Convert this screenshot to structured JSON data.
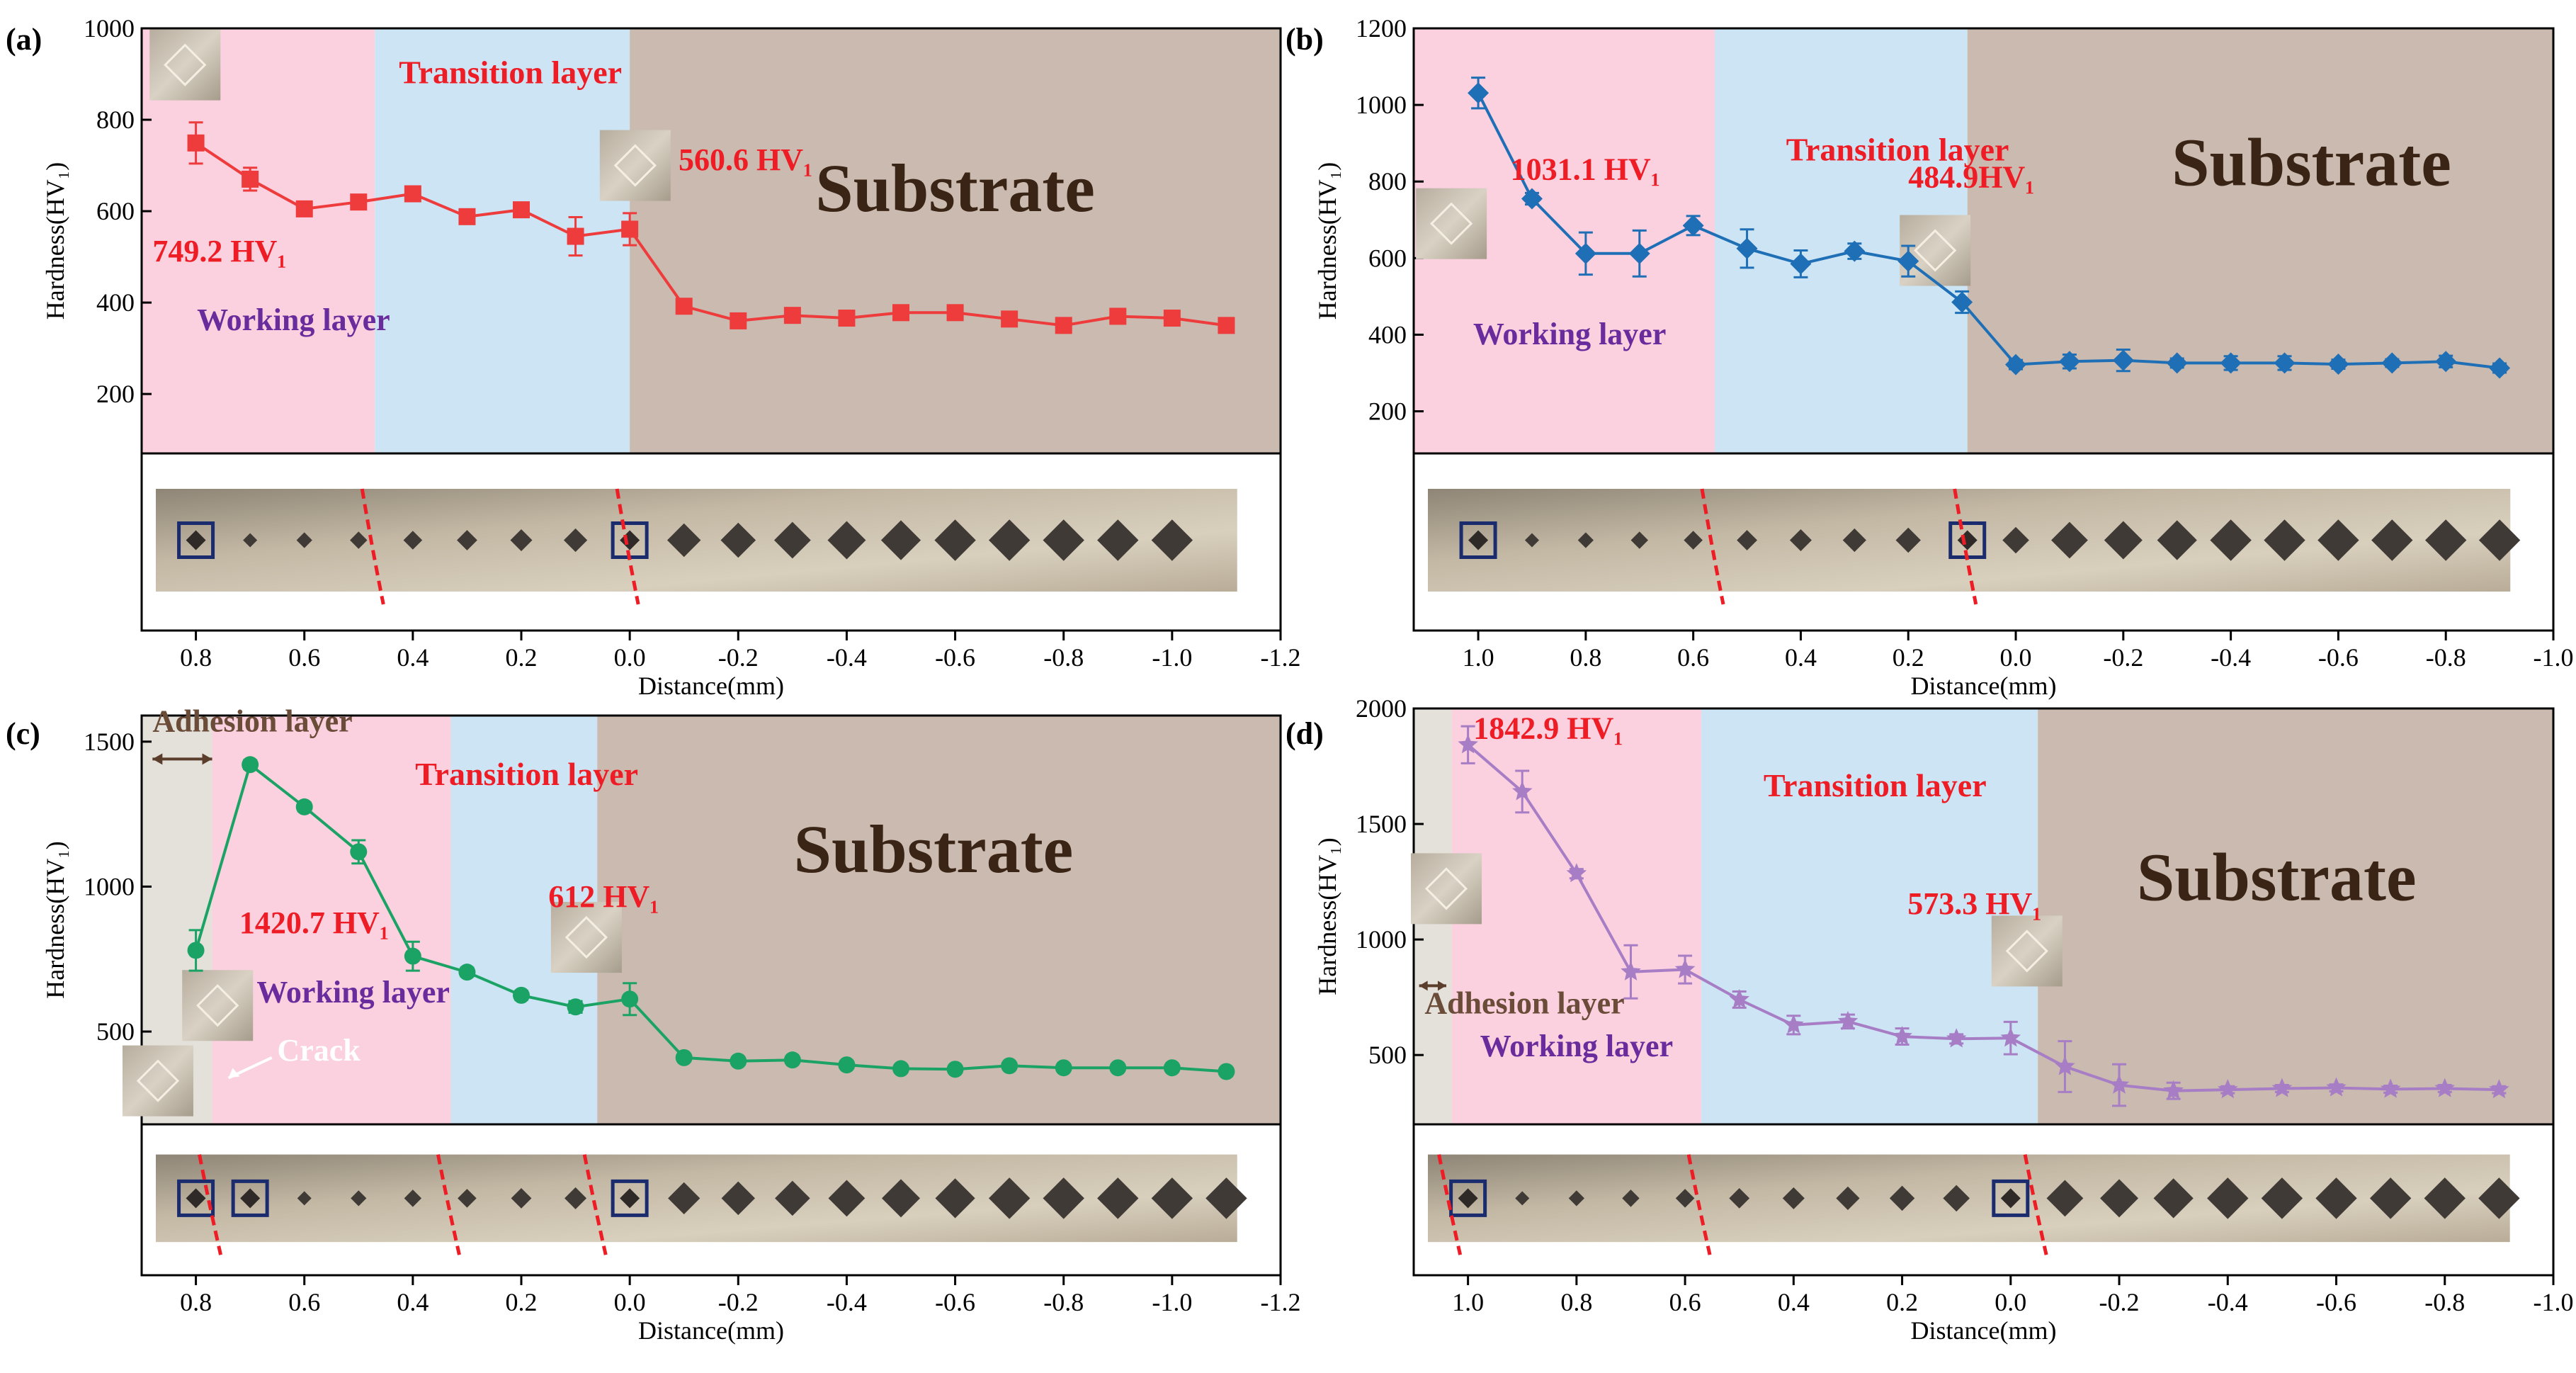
{
  "figure": {
    "x_label": "Distance(mm)",
    "y_label": "Hardness(HV₁)"
  },
  "chart_data": [
    {
      "id": "a",
      "panel_label": "(a)",
      "type": "line",
      "title": "",
      "xlabel": "Distance(mm)",
      "ylabel": "Hardness(HV₁)",
      "xlim": [
        0.9,
        -1.2
      ],
      "ylim": [
        70,
        1000
      ],
      "xticks": [
        "0.8",
        "0.6",
        "0.4",
        "0.2",
        "0.0",
        "-0.2",
        "-0.4",
        "-0.6",
        "-0.8",
        "-1.0",
        "-1.2"
      ],
      "yticks": [
        "200",
        "400",
        "600",
        "800",
        "1000"
      ],
      "color": "#ee3b3b",
      "marker": "square",
      "series": [
        {
          "name": "hardness",
          "x": [
            0.8,
            0.7,
            0.6,
            0.5,
            0.4,
            0.3,
            0.2,
            0.1,
            0.0,
            -0.1,
            -0.2,
            -0.3,
            -0.4,
            -0.5,
            -0.6,
            -0.7,
            -0.8,
            -0.9,
            -1.0,
            -1.1
          ],
          "y": [
            749.2,
            670,
            605,
            620,
            638,
            588,
            603,
            545,
            560.6,
            392,
            360,
            372,
            366,
            378,
            378,
            364,
            350,
            370,
            366,
            350
          ],
          "err": [
            45,
            25,
            10,
            10,
            12,
            12,
            12,
            42,
            35,
            12,
            10,
            10,
            10,
            10,
            10,
            10,
            8,
            10,
            10,
            8
          ]
        }
      ],
      "regions": [
        {
          "name": "Working layer",
          "from": 0.9,
          "to": 0.47,
          "color": "#fbd0df"
        },
        {
          "name": "Transition layer",
          "from": 0.47,
          "to": 0.0,
          "color": "#cce4f4"
        },
        {
          "name": "Substrate",
          "from": 0.0,
          "to": -1.2,
          "color": "#cabab0"
        }
      ],
      "annotations": [
        {
          "text": "Transition layer",
          "x": 0.22,
          "y": 880,
          "color": "#ee1c25",
          "size": 46,
          "anchor": "middle"
        },
        {
          "text": "Substrate",
          "x": -0.6,
          "y": 600,
          "color": "#3a2415",
          "size": 96,
          "anchor": "middle"
        },
        {
          "text": "Working layer",
          "x": 0.62,
          "y": 340,
          "color": "#6a2c9c",
          "size": 44,
          "anchor": "middle"
        },
        {
          "text": "749.2 HV₁",
          "x": 0.88,
          "y": 490,
          "color": "#ee1c25",
          "size": 44,
          "anchor": "start"
        },
        {
          "text": "560.6 HV₁",
          "x": -0.09,
          "y": 690,
          "color": "#ee1c25",
          "size": 44,
          "anchor": "start"
        }
      ],
      "indent_squares": [
        0.8,
        0.0
      ],
      "photo_indents": [
        0.7,
        0.6,
        0.5,
        0.4,
        0.3,
        0.2,
        0.1,
        -0.1,
        -0.2,
        -0.3,
        -0.4,
        -0.5,
        -0.6,
        -0.7,
        -0.8,
        -0.9,
        -1.0
      ]
    },
    {
      "id": "b",
      "panel_label": "(b)",
      "type": "line",
      "title": "",
      "xlabel": "Distance(mm)",
      "ylabel": "Hardness(HV₁)",
      "xlim": [
        1.12,
        -1.0
      ],
      "ylim": [
        90,
        1200
      ],
      "xticks": [
        "1.0",
        "0.8",
        "0.6",
        "0.4",
        "0.2",
        "0.0",
        "-0.2",
        "-0.4",
        "-0.6",
        "-0.8",
        "-1.0"
      ],
      "yticks": [
        "200",
        "400",
        "600",
        "800",
        "1000",
        "1200"
      ],
      "color": "#1f6fb6",
      "marker": "diamond",
      "series": [
        {
          "name": "hardness",
          "x": [
            1.0,
            0.9,
            0.8,
            0.7,
            0.6,
            0.5,
            0.4,
            0.3,
            0.2,
            0.1,
            0.0,
            -0.1,
            -0.2,
            -0.3,
            -0.4,
            -0.5,
            -0.6,
            -0.7,
            -0.8,
            -0.9
          ],
          "y": [
            1031.1,
            755,
            612,
            612,
            685,
            625,
            585,
            618,
            592,
            484.9,
            322,
            330,
            333,
            326,
            326,
            326,
            323,
            326,
            330,
            313
          ],
          "err": [
            40,
            15,
            55,
            60,
            25,
            50,
            35,
            20,
            40,
            28,
            12,
            18,
            28,
            12,
            18,
            18,
            12,
            10,
            15,
            12
          ]
        }
      ],
      "regions": [
        {
          "name": "Working layer",
          "from": 1.12,
          "to": 0.56,
          "color": "#fbd0df"
        },
        {
          "name": "Transition layer",
          "from": 0.56,
          "to": 0.09,
          "color": "#cce4f4"
        },
        {
          "name": "Substrate",
          "from": 0.09,
          "to": -1.0,
          "color": "#cabab0"
        }
      ],
      "annotations": [
        {
          "text": "Transition layer",
          "x": 0.22,
          "y": 855,
          "color": "#ee1c25",
          "size": 46,
          "anchor": "middle"
        },
        {
          "text": "Substrate",
          "x": -0.55,
          "y": 790,
          "color": "#3a2415",
          "size": 96,
          "anchor": "middle"
        },
        {
          "text": "Working layer",
          "x": 0.83,
          "y": 375,
          "color": "#6a2c9c",
          "size": 44,
          "anchor": "middle"
        },
        {
          "text": "1031.1 HV₁",
          "x": 0.94,
          "y": 805,
          "color": "#ee1c25",
          "size": 44,
          "anchor": "start"
        },
        {
          "text": "484.9HV₁",
          "x": 0.2,
          "y": 785,
          "color": "#ee1c25",
          "size": 44,
          "anchor": "start"
        }
      ],
      "indent_squares": [
        1.0,
        0.09
      ],
      "photo_indents": [
        0.9,
        0.8,
        0.7,
        0.6,
        0.5,
        0.4,
        0.3,
        0.2,
        0.0,
        -0.1,
        -0.2,
        -0.3,
        -0.4,
        -0.5,
        -0.6,
        -0.7,
        -0.8,
        -0.9
      ]
    },
    {
      "id": "c",
      "panel_label": "(c)",
      "type": "line",
      "title": "",
      "xlabel": "Distance(mm)",
      "ylabel": "Hardness(HV₁)",
      "xlim": [
        0.9,
        -1.2
      ],
      "ylim": [
        180,
        1590
      ],
      "xticks": [
        "0.8",
        "0.6",
        "0.4",
        "0.2",
        "0.0",
        "-0.2",
        "-0.4",
        "-0.6",
        "-0.8",
        "-1.0",
        "-1.2"
      ],
      "yticks": [
        "500",
        "1000",
        "1500"
      ],
      "color": "#1aa364",
      "marker": "circle",
      "series": [
        {
          "name": "hardness",
          "x": [
            0.8,
            0.7,
            0.6,
            0.5,
            0.4,
            0.3,
            0.2,
            0.1,
            0.0,
            -0.1,
            -0.2,
            -0.3,
            -0.4,
            -0.5,
            -0.6,
            -0.7,
            -0.8,
            -0.9,
            -1.0,
            -1.1
          ],
          "y": [
            780,
            1420.7,
            1275,
            1120,
            760,
            705,
            625,
            585,
            612,
            410,
            398,
            402,
            385,
            372,
            370,
            382,
            375,
            375,
            375,
            362
          ],
          "err": [
            70,
            15,
            15,
            40,
            50,
            15,
            15,
            20,
            55,
            12,
            12,
            12,
            10,
            10,
            10,
            10,
            10,
            10,
            10,
            10
          ]
        }
      ],
      "regions": [
        {
          "name": "Adhesion layer",
          "from": 0.9,
          "to": 0.77,
          "color": "#e4e0da"
        },
        {
          "name": "Working layer",
          "from": 0.77,
          "to": 0.33,
          "color": "#fbd0df"
        },
        {
          "name": "Transition layer",
          "from": 0.33,
          "to": 0.06,
          "color": "#cce4f4"
        },
        {
          "name": "Substrate",
          "from": 0.06,
          "to": -1.2,
          "color": "#cabab0"
        }
      ],
      "annotations": [
        {
          "text": "Adhesion layer",
          "x": 0.88,
          "y": 1535,
          "color": "#6a4c38",
          "size": 44,
          "anchor": "start"
        },
        {
          "text": "Transition layer",
          "x": 0.19,
          "y": 1350,
          "color": "#ee1c25",
          "size": 46,
          "anchor": "middle"
        },
        {
          "text": "Substrate",
          "x": -0.56,
          "y": 1050,
          "color": "#3a2415",
          "size": 96,
          "anchor": "middle"
        },
        {
          "text": "Working layer",
          "x": 0.51,
          "y": 600,
          "color": "#6a2c9c",
          "size": 44,
          "anchor": "middle"
        },
        {
          "text": "1420.7 HV₁",
          "x": 0.72,
          "y": 840,
          "color": "#ee1c25",
          "size": 44,
          "anchor": "start"
        },
        {
          "text": "612 HV₁",
          "x": 0.15,
          "y": 930,
          "color": "#ee1c25",
          "size": 44,
          "anchor": "start"
        },
        {
          "text": "Crack",
          "x": 0.65,
          "y": 400,
          "color": "#ffffff",
          "size": 44,
          "anchor": "start"
        }
      ],
      "indent_squares": [
        0.8,
        0.7,
        0.0
      ],
      "photo_indents": [
        0.6,
        0.5,
        0.4,
        0.3,
        0.2,
        0.1,
        -0.1,
        -0.2,
        -0.3,
        -0.4,
        -0.5,
        -0.6,
        -0.7,
        -0.8,
        -0.9,
        -1.0,
        -1.1
      ]
    },
    {
      "id": "d",
      "panel_label": "(d)",
      "type": "line",
      "title": "",
      "xlabel": "Distance(mm)",
      "ylabel": "Hardness(HV₁)",
      "xlim": [
        1.1,
        -1.0
      ],
      "ylim": [
        200,
        2000
      ],
      "xticks": [
        "1.0",
        "0.8",
        "0.6",
        "0.4",
        "0.2",
        "0.0",
        "-0.2",
        "-0.4",
        "-0.6",
        "-0.8",
        "-1.0"
      ],
      "yticks": [
        "500",
        "1000",
        "1500",
        "2000"
      ],
      "color": "#a77ec5",
      "marker": "star",
      "series": [
        {
          "name": "hardness",
          "x": [
            1.0,
            0.9,
            0.8,
            0.7,
            0.6,
            0.5,
            0.4,
            0.3,
            0.2,
            0.1,
            0.0,
            -0.1,
            -0.2,
            -0.3,
            -0.4,
            -0.5,
            -0.6,
            -0.7,
            -0.8,
            -0.9
          ],
          "y": [
            1842.9,
            1640,
            1285,
            860,
            870,
            740,
            630,
            645,
            580,
            570,
            573.3,
            450,
            370,
            345,
            350,
            355,
            358,
            352,
            355,
            350
          ],
          "err": [
            80,
            90,
            20,
            115,
            60,
            35,
            40,
            30,
            35,
            20,
            70,
            110,
            90,
            35,
            15,
            15,
            15,
            15,
            15,
            15
          ]
        }
      ],
      "regions": [
        {
          "name": "Adhesion layer",
          "from": 1.1,
          "to": 1.03,
          "color": "#e4e0da"
        },
        {
          "name": "Working layer",
          "from": 1.03,
          "to": 0.57,
          "color": "#fbd0df"
        },
        {
          "name": "Transition layer",
          "from": 0.57,
          "to": -0.05,
          "color": "#cce4f4"
        },
        {
          "name": "Substrate",
          "from": -0.05,
          "to": -1.0,
          "color": "#cabab0"
        }
      ],
      "annotations": [
        {
          "text": "1842.9 HV₁",
          "x": 0.99,
          "y": 1870,
          "color": "#ee1c25",
          "size": 44,
          "anchor": "start"
        },
        {
          "text": "Transition layer",
          "x": 0.25,
          "y": 1620,
          "color": "#ee1c25",
          "size": 46,
          "anchor": "middle"
        },
        {
          "text": "Substrate",
          "x": -0.49,
          "y": 1170,
          "color": "#3a2415",
          "size": 96,
          "anchor": "middle"
        },
        {
          "text": "573.3 HV₁",
          "x": 0.19,
          "y": 1110,
          "color": "#ee1c25",
          "size": 44,
          "anchor": "start"
        },
        {
          "text": "Adhesion layer",
          "x": 1.08,
          "y": 680,
          "color": "#6a4c38",
          "size": 44,
          "anchor": "start"
        },
        {
          "text": "Working layer",
          "x": 0.8,
          "y": 495,
          "color": "#6a2c9c",
          "size": 44,
          "anchor": "middle"
        }
      ],
      "indent_squares": [
        1.0,
        0.0
      ],
      "photo_indents": [
        0.9,
        0.8,
        0.7,
        0.6,
        0.5,
        0.4,
        0.3,
        0.2,
        0.1,
        -0.1,
        -0.2,
        -0.3,
        -0.4,
        -0.5,
        -0.6,
        -0.7,
        -0.8,
        -0.9
      ]
    }
  ]
}
